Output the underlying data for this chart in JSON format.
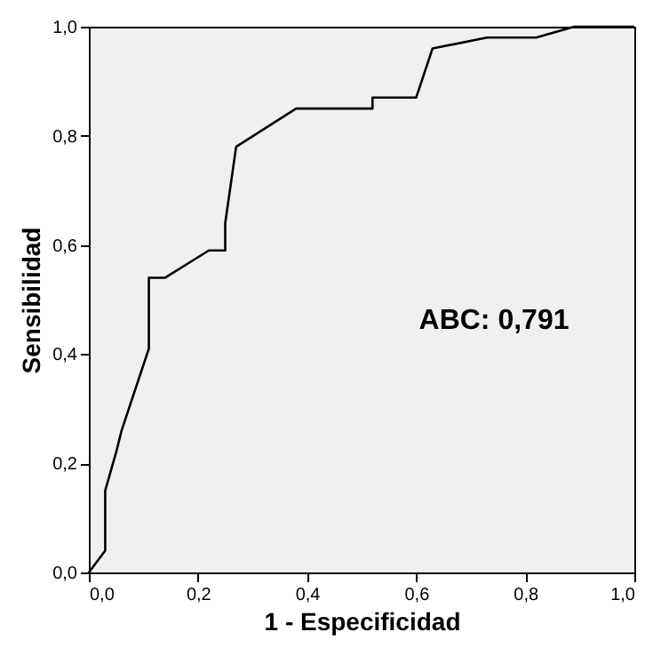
{
  "chart_data": {
    "type": "line",
    "xlabel": "1 - Especificidad",
    "ylabel": "Sensibilidad",
    "annotations": [
      "ABC: 0,791"
    ],
    "x": [
      0,
      0.03,
      0.03,
      0.05,
      0.06,
      0.11,
      0.11,
      0.14,
      0.22,
      0.25,
      0.25,
      0.25,
      0.27,
      0.38,
      0.52,
      0.52,
      0.6,
      0.63,
      0.73,
      0.82,
      0.89,
      1.0
    ],
    "series": [
      {
        "color": "#000000",
        "values": [
          0,
          0.04,
          0.15,
          0.22,
          0.26,
          0.41,
          0.54,
          0.54,
          0.59,
          0.59,
          0.59,
          0.64,
          0.78,
          0.85,
          0.85,
          0.87,
          0.87,
          0.96,
          0.98,
          0.98,
          1.0,
          1.0
        ]
      }
    ],
    "xlim": [
      0,
      1
    ],
    "ylim": [
      0,
      1
    ],
    "xticks": [
      {
        "value": 0,
        "label": "0,0"
      },
      {
        "value": 0.2,
        "label": "0,2"
      },
      {
        "value": 0.4,
        "label": "0,4"
      },
      {
        "value": 0.6,
        "label": "0,6"
      },
      {
        "value": 0.8,
        "label": "0,8"
      },
      {
        "value": 1,
        "label": "1,0"
      }
    ],
    "yticks": [
      {
        "value": 0,
        "label": "0,0"
      },
      {
        "value": 0.2,
        "label": "0,2"
      },
      {
        "value": 0.4,
        "label": "0,4"
      },
      {
        "value": 0.6,
        "label": "0,6"
      },
      {
        "value": 0.8,
        "label": "0,8"
      },
      {
        "value": 1,
        "label": "1,0"
      }
    ],
    "grid": false,
    "marker": "none",
    "line_style": "solid"
  }
}
